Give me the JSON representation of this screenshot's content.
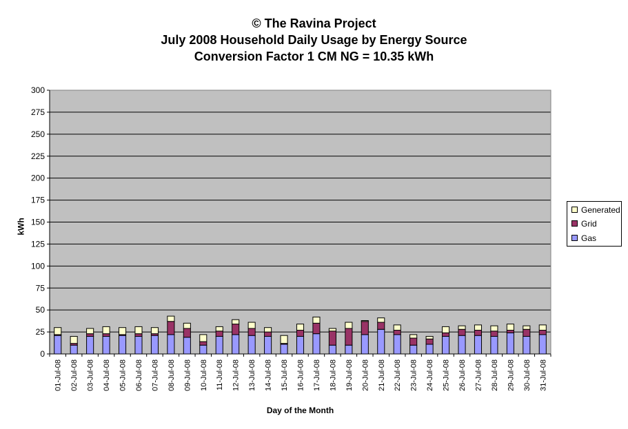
{
  "chart_data": {
    "type": "bar",
    "stacked": true,
    "title": [
      "© The Ravina Project",
      "July 2008 Household Daily Usage by Energy Source",
      "Conversion Factor 1 CM NG = 10.35 kWh"
    ],
    "xlabel": "Day of the Month",
    "ylabel": "kWh",
    "ylim": [
      0,
      300
    ],
    "yticks": [
      0,
      25,
      50,
      75,
      100,
      125,
      150,
      175,
      200,
      225,
      250,
      275,
      300
    ],
    "grid": true,
    "legend_position": "right",
    "categories": [
      "01-Jul-08",
      "02-Jul-08",
      "03-Jul-08",
      "04-Jul-08",
      "05-Jul-08",
      "06-Jul-08",
      "07-Jul-08",
      "08-Jul-08",
      "09-Jul-08",
      "10-Jul-08",
      "11-Jul-08",
      "12-Jul-08",
      "13-Jul-08",
      "14-Jul-08",
      "15-Jul-08",
      "16-Jul-08",
      "17-Jul-08",
      "18-Jul-08",
      "19-Jul-08",
      "20-Jul-08",
      "21-Jul-08",
      "22-Jul-08",
      "23-Jul-08",
      "24-Jul-08",
      "25-Jul-08",
      "26-Jul-08",
      "27-Jul-08",
      "28-Jul-08",
      "29-Jul-08",
      "30-Jul-08",
      "31-Jul-08"
    ],
    "series": [
      {
        "name": "Gas",
        "color": "#9999ff",
        "values": [
          21,
          10,
          20,
          20,
          21,
          20,
          21,
          22,
          19,
          10,
          20,
          22,
          21,
          20,
          11,
          20,
          23,
          10,
          10,
          22,
          28,
          22,
          10,
          11,
          20,
          21,
          21,
          20,
          24,
          20,
          22
        ]
      },
      {
        "name": "Grid",
        "color": "#993366",
        "values": [
          1,
          2,
          3,
          3,
          1,
          3,
          2,
          15,
          10,
          4,
          6,
          12,
          8,
          5,
          1,
          7,
          12,
          16,
          19,
          15,
          8,
          5,
          8,
          6,
          4,
          7,
          6,
          6,
          3,
          8,
          5
        ]
      },
      {
        "name": "Generated",
        "color": "#ffffcc",
        "values": [
          8,
          8,
          6,
          8,
          8,
          8,
          7,
          6,
          6,
          8,
          5,
          5,
          7,
          5,
          9,
          7,
          7,
          3,
          7,
          1,
          5,
          6,
          4,
          3,
          7,
          4,
          6,
          6,
          7,
          4,
          6
        ]
      }
    ],
    "legend_order": [
      "Generated",
      "Grid",
      "Gas"
    ]
  }
}
